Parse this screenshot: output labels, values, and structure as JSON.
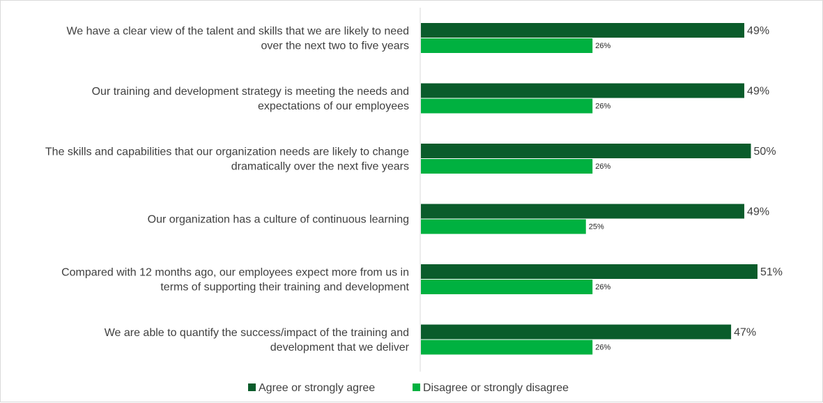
{
  "chart_data": {
    "type": "bar",
    "orientation": "horizontal",
    "categories": [
      [
        "We have a clear view of the talent and skills that we are likely to need",
        "over the next two to five years"
      ],
      [
        "Our training and development strategy is meeting the needs and",
        "expectations of our employees"
      ],
      [
        "The skills and capabilities that our organization needs are likely to change",
        "dramatically over the next five years"
      ],
      [
        "Our organization has a culture of continuous learning"
      ],
      [
        "Compared with 12 months ago, our employees expect more from us in",
        "terms of supporting their training and development"
      ],
      [
        "We are able to quantify the success/impact of the training and",
        "development that we deliver"
      ]
    ],
    "series": [
      {
        "name": "Agree or strongly agree",
        "color": "#0a5c2b",
        "values": [
          49,
          49,
          50,
          49,
          51,
          47
        ],
        "labels": [
          "49%",
          "49%",
          "50%",
          "49%",
          "51%",
          "47%"
        ]
      },
      {
        "name": "Disagree or strongly disagree",
        "color": "#00b140",
        "values": [
          26,
          26,
          26,
          25,
          26,
          26
        ],
        "labels": [
          "26%",
          "26%",
          "26%",
          "25%",
          "26%",
          "26%"
        ]
      }
    ],
    "xlim": [
      0,
      51
    ],
    "grid": false,
    "legend": "bottom"
  }
}
